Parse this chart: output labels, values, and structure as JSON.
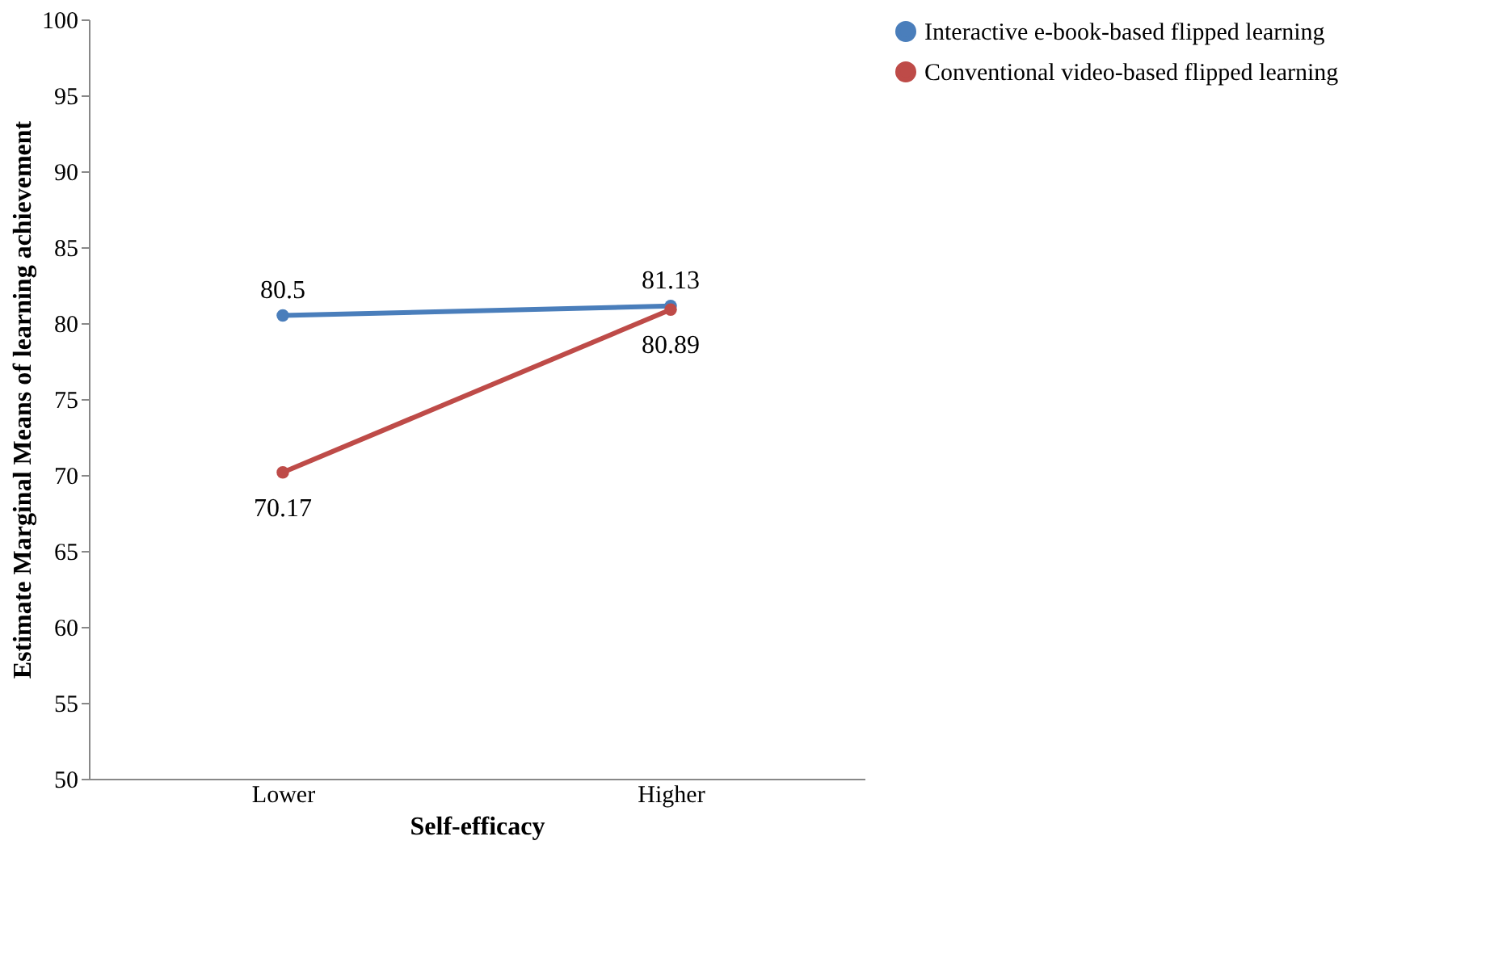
{
  "chart_data": {
    "type": "line",
    "xlabel": "Self-efficacy",
    "ylabel": "Estimate Marginal Means of learning achievement",
    "categories": [
      "Lower",
      "Higher"
    ],
    "series": [
      {
        "name": "Interactive e-book-based flipped learning",
        "color": "#4a7ebb",
        "values": [
          80.5,
          81.13
        ]
      },
      {
        "name": "Conventional video-based flipped learning",
        "color": "#be4b48",
        "values": [
          70.17,
          80.89
        ]
      }
    ],
    "ylim": [
      50,
      100
    ],
    "yticks": [
      50,
      55,
      60,
      65,
      70,
      75,
      80,
      85,
      90,
      95,
      100
    ],
    "grid": false,
    "legend": "right",
    "marker": "circle",
    "line_style": "solid",
    "data_labels": true
  }
}
